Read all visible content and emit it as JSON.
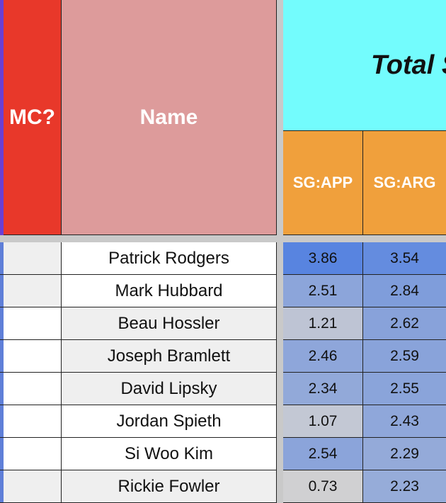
{
  "header": {
    "group_title": "Total S",
    "mc": "MC?",
    "name": "Name",
    "sg_app": "SG:APP",
    "sg_arg": "SG:ARG"
  },
  "rows": [
    {
      "name": "Patrick Rodgers",
      "sg_app": 3.86,
      "sg_arg": 3.54
    },
    {
      "name": "Mark Hubbard",
      "sg_app": 2.51,
      "sg_arg": 2.84
    },
    {
      "name": "Beau Hossler",
      "sg_app": 1.21,
      "sg_arg": 2.62
    },
    {
      "name": "Joseph Bramlett",
      "sg_app": 2.46,
      "sg_arg": 2.59
    },
    {
      "name": "David Lipsky",
      "sg_app": 2.34,
      "sg_arg": 2.55
    },
    {
      "name": "Jordan Spieth",
      "sg_app": 1.07,
      "sg_arg": 2.43
    },
    {
      "name": "Si Woo Kim",
      "sg_app": 2.54,
      "sg_arg": 2.29
    },
    {
      "name": "Rickie Fowler",
      "sg_app": 0.73,
      "sg_arg": 2.23
    }
  ]
}
